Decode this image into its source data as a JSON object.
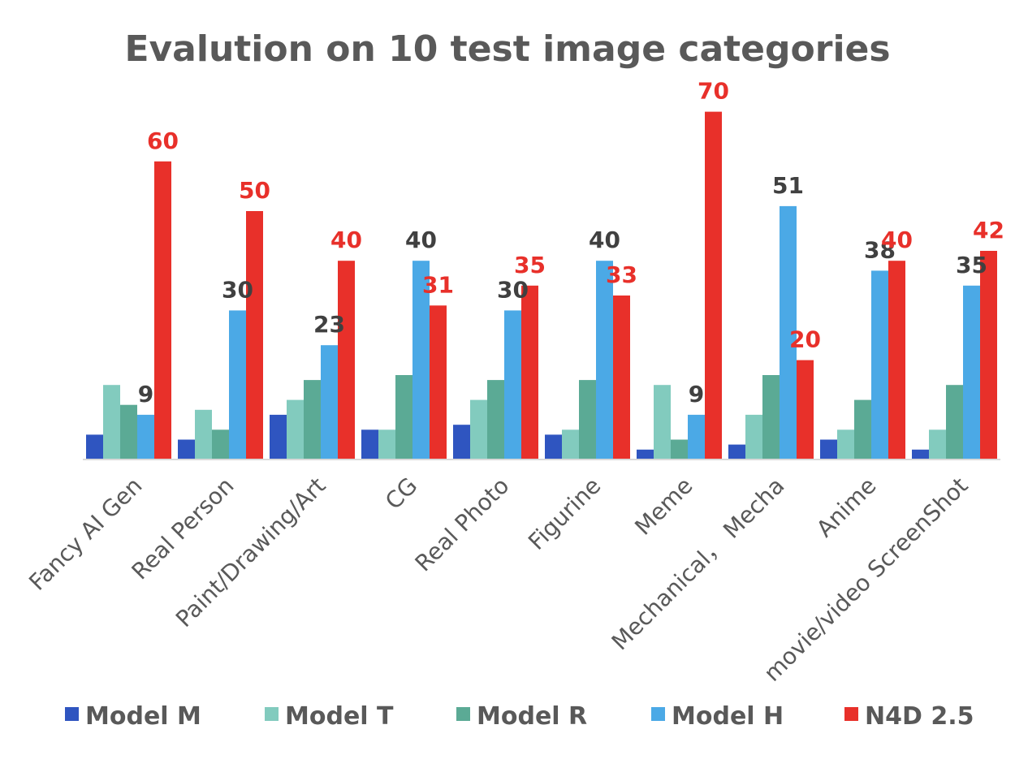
{
  "chart_data": {
    "type": "bar",
    "title": "Evalution on 10 test image categories",
    "categories": [
      "Fancy AI Gen",
      "Real Person",
      "Paint/Drawing/Art",
      "CG",
      "Real Photo",
      "Figurine",
      "Meme",
      "Mechanical， Mecha",
      "Anime",
      "movie/video ScreenShot"
    ],
    "series": [
      {
        "name": "Model M",
        "color": "#2F55C0",
        "values": [
          5,
          4,
          9,
          6,
          7,
          5,
          2,
          3,
          4,
          2
        ],
        "labels": [
          null,
          null,
          null,
          null,
          null,
          null,
          null,
          null,
          null,
          null
        ]
      },
      {
        "name": "Model T",
        "color": "#82CBBE",
        "values": [
          15,
          10,
          12,
          6,
          12,
          6,
          15,
          9,
          6,
          6
        ],
        "labels": [
          null,
          null,
          null,
          null,
          null,
          null,
          null,
          null,
          null,
          null
        ]
      },
      {
        "name": "Model R",
        "color": "#5BAA95",
        "values": [
          11,
          6,
          16,
          17,
          16,
          16,
          4,
          17,
          12,
          15
        ],
        "labels": [
          null,
          null,
          null,
          null,
          null,
          null,
          null,
          null,
          null,
          null
        ]
      },
      {
        "name": "Model H",
        "color": "#4BA9E6",
        "values": [
          9,
          30,
          23,
          40,
          30,
          40,
          9,
          51,
          38,
          35
        ],
        "labels": [
          "9",
          "30",
          "23",
          "40",
          "30",
          "40",
          "9",
          "51",
          "38",
          "35"
        ]
      },
      {
        "name": "N4D 2.5",
        "color": "#E8302A",
        "values": [
          60,
          50,
          40,
          31,
          35,
          33,
          70,
          20,
          40,
          42
        ],
        "labels": [
          "60",
          "50",
          "40",
          "31",
          "35",
          "33",
          "70",
          "20",
          "40",
          "42"
        ]
      }
    ],
    "label_colors": {
      "dark": "#404040",
      "red": "#E8302A"
    },
    "ylim": [
      0,
      75
    ],
    "grid": false,
    "legend_position": "bottom"
  }
}
